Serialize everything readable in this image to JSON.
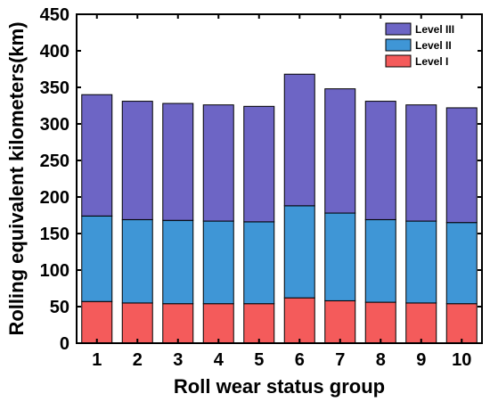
{
  "chart_data": {
    "type": "bar",
    "stacked": true,
    "categories": [
      "1",
      "2",
      "3",
      "4",
      "5",
      "6",
      "7",
      "8",
      "9",
      "10"
    ],
    "series": [
      {
        "name": "Level I",
        "color": "#f45b5b",
        "values": [
          57,
          55,
          54,
          54,
          54,
          62,
          58,
          56,
          55,
          54
        ]
      },
      {
        "name": "Level II",
        "color": "#3f96d6",
        "values": [
          117,
          114,
          114,
          113,
          112,
          126,
          120,
          113,
          112,
          111
        ]
      },
      {
        "name": "Level III",
        "color": "#6d65c5",
        "values": [
          166,
          162,
          160,
          159,
          158,
          180,
          170,
          162,
          159,
          157
        ]
      }
    ],
    "xlabel": "Roll wear status group",
    "ylabel": "Rolling equivalent kilometers(km)",
    "ylim": [
      0,
      450
    ],
    "yticks": [
      0,
      50,
      100,
      150,
      200,
      250,
      300,
      350,
      400,
      450
    ],
    "legend_position": "top-right",
    "grid": false
  }
}
